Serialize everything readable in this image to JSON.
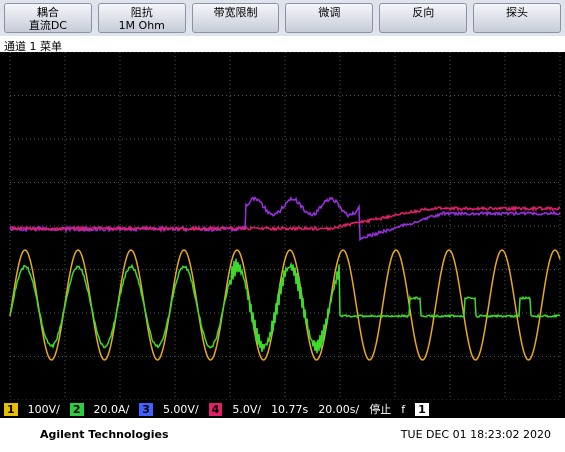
{
  "softkeys": [
    {
      "label": "耦合",
      "value": "直流DC"
    },
    {
      "label": "阻抗",
      "value": "1M Ohm"
    },
    {
      "label": "带宽限制"
    },
    {
      "label": "微调"
    },
    {
      "label": "反向"
    },
    {
      "label": "探头"
    }
  ],
  "menu_title": "通道 1 菜单",
  "status": {
    "ch1": {
      "num": "1",
      "scale": "100V/"
    },
    "ch2": {
      "num": "2",
      "scale": "20.0A/"
    },
    "ch3": {
      "num": "3",
      "scale": "5.00V/"
    },
    "ch4": {
      "num": "4",
      "scale": "5.0V/"
    },
    "delay": "10.77s",
    "timebase": "20.00s/",
    "run_state": "停止",
    "trigger": "f",
    "trigger_source": "1"
  },
  "footer": {
    "brand": "Agilent Technologies",
    "datetime": "TUE DEC 01 18:23:02 2020"
  }
}
